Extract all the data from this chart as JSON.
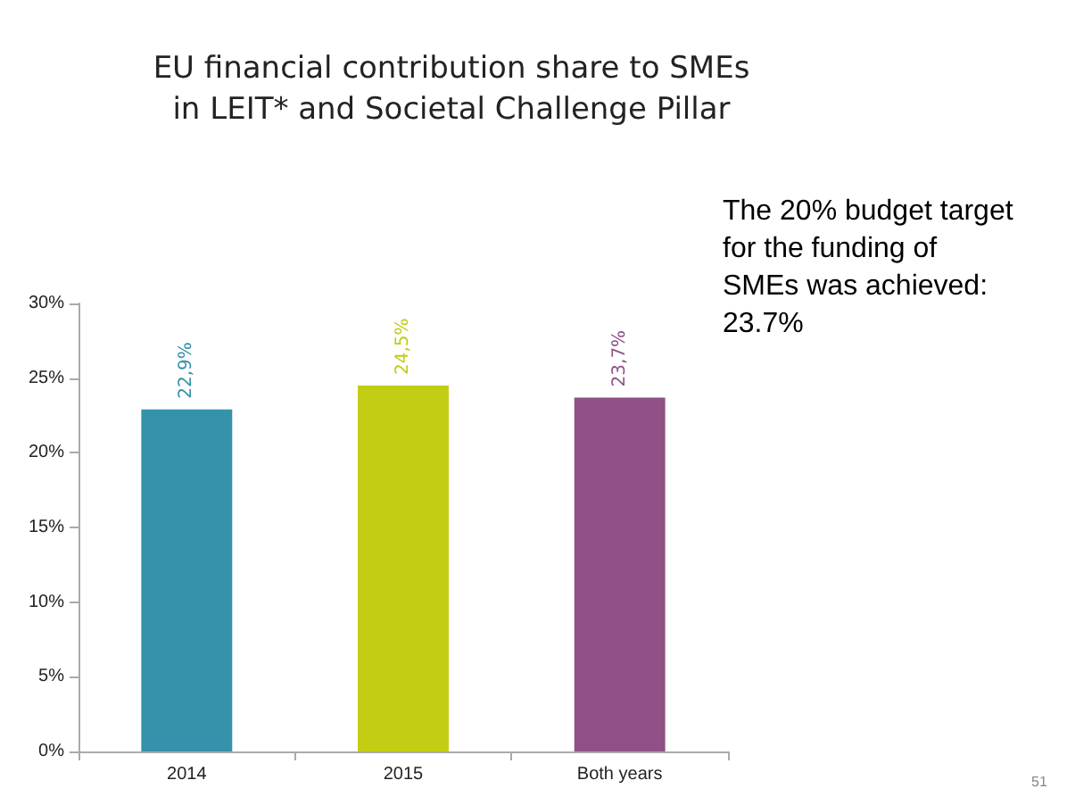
{
  "chart_data": {
    "type": "bar",
    "title": "EU financial contribution share to SMEs\nin LEIT* and Societal Challenge Pillar",
    "categories": [
      "2014",
      "2015",
      "Both years"
    ],
    "values": [
      22.9,
      24.5,
      23.7
    ],
    "colors": [
      "#3592aa",
      "#c2cd13",
      "#8f5186"
    ],
    "value_labels": [
      "22,9%",
      "24,5%",
      "23,7%"
    ],
    "ylim": [
      0,
      30
    ],
    "yticks": [
      {
        "value": 0,
        "label": "0%"
      },
      {
        "value": 5,
        "label": "5%"
      },
      {
        "value": 10,
        "label": "10%"
      },
      {
        "value": 15,
        "label": "15%"
      },
      {
        "value": 20,
        "label": "20%"
      },
      {
        "value": 25,
        "label": "25%"
      },
      {
        "value": 30,
        "label": "30%"
      }
    ],
    "grid": false,
    "annotations": [
      "The 20% budget target\nfor the funding of\nSMEs was achieved:\n23.7%",
      "51"
    ]
  }
}
